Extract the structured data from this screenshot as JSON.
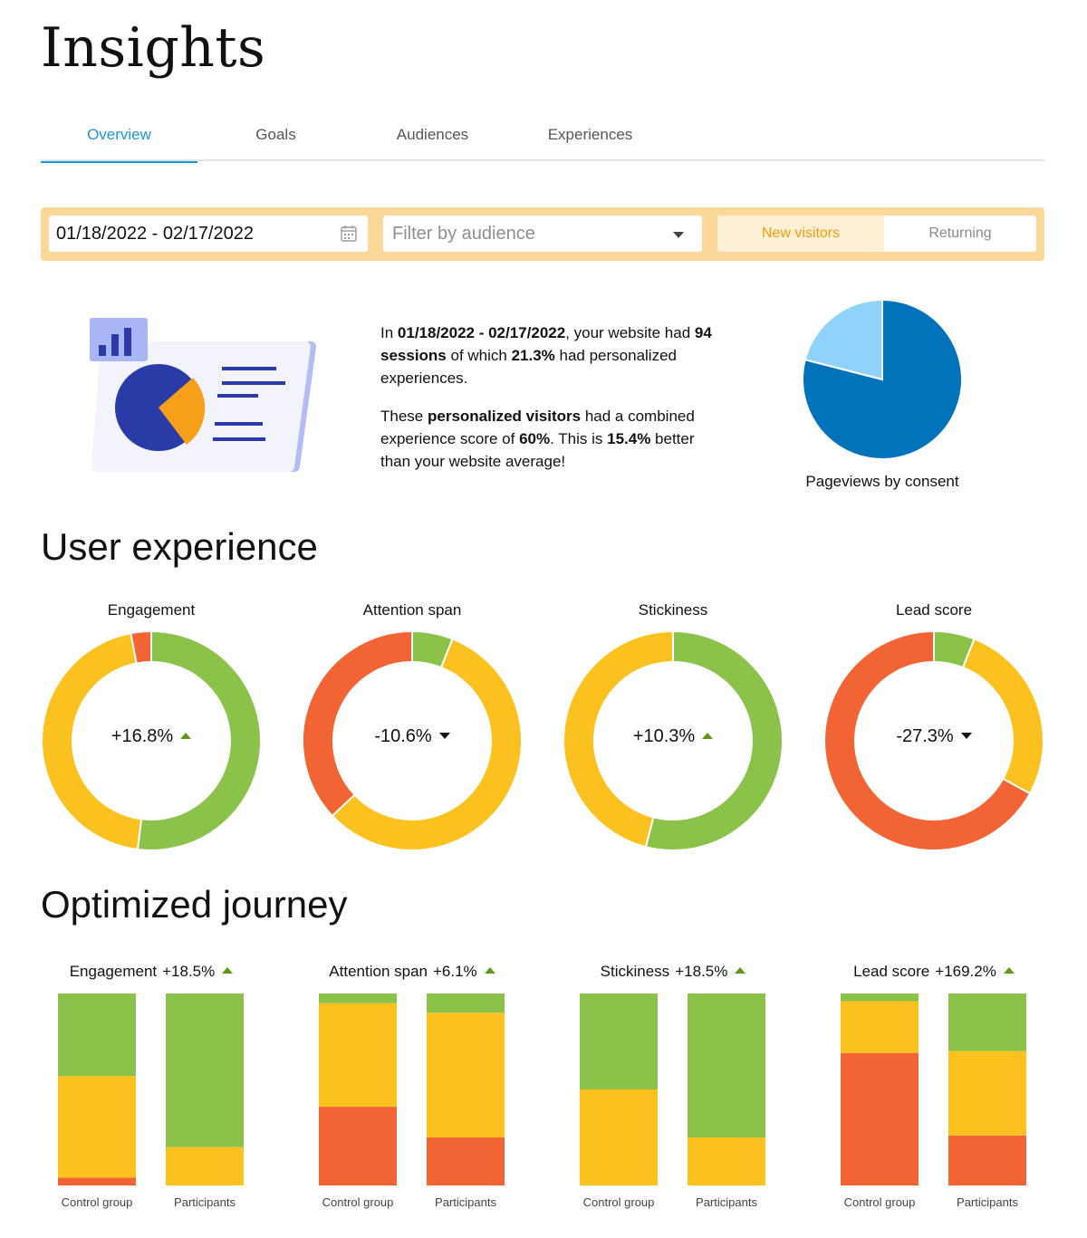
{
  "page": {
    "title": "Insights"
  },
  "tabs": [
    {
      "label": "Overview",
      "active": true
    },
    {
      "label": "Goals",
      "active": false
    },
    {
      "label": "Audiences",
      "active": false
    },
    {
      "label": "Experiences",
      "active": false
    }
  ],
  "filters": {
    "date_range": "01/18/2022 - 02/17/2022",
    "audience_placeholder": "Filter by audience",
    "toggle": [
      {
        "label": "New visitors",
        "active": true
      },
      {
        "label": "Returning",
        "active": false
      }
    ]
  },
  "colors": {
    "green": "#8bc34a",
    "yellow": "#fbc21f",
    "red": "#f26433",
    "pie_dark": "#0073bb",
    "pie_light": "#8fd3fb",
    "accent": "#1d97d9"
  },
  "summary": {
    "p1_prefix": "In ",
    "p1_date": "01/18/2022 - 02/17/2022",
    "p1_mid1": ", your website had ",
    "p1_sessions": "94 sessions",
    "p1_mid2": " of which ",
    "p1_pct": "21.3%",
    "p1_suffix": " had personalized experiences.",
    "p2_prefix": "These ",
    "p2_bold1": "personalized visitors",
    "p2_mid1": " had a combined experience score of ",
    "p2_score": "60%",
    "p2_mid2": ". This is ",
    "p2_better": "15.4%",
    "p2_suffix": " better than your website average!"
  },
  "consent_chart": {
    "caption": "Pageviews by consent",
    "slices": [
      {
        "value": 79,
        "color": "#0073bb"
      },
      {
        "value": 21,
        "color": "#8fd3fb"
      }
    ]
  },
  "sections": {
    "user_experience": "User experience",
    "optimized_journey": "Optimized journey"
  },
  "chart_data": [
    {
      "type": "pie",
      "title": "Engagement",
      "center_label": "+16.8%",
      "trend": "up",
      "slices": [
        {
          "value": 52,
          "color": "#8bc34a"
        },
        {
          "value": 45,
          "color": "#fbc21f"
        },
        {
          "value": 3,
          "color": "#f26433"
        }
      ]
    },
    {
      "type": "pie",
      "title": "Attention span",
      "center_label": "-10.6%",
      "trend": "down",
      "slices": [
        {
          "value": 6,
          "color": "#8bc34a"
        },
        {
          "value": 57,
          "color": "#fbc21f"
        },
        {
          "value": 37,
          "color": "#f26433"
        }
      ]
    },
    {
      "type": "pie",
      "title": "Stickiness",
      "center_label": "+10.3%",
      "trend": "up",
      "slices": [
        {
          "value": 54,
          "color": "#8bc34a"
        },
        {
          "value": 46,
          "color": "#fbc21f"
        }
      ]
    },
    {
      "type": "pie",
      "title": "Lead score",
      "center_label": "-27.3%",
      "trend": "down",
      "slices": [
        {
          "value": 6,
          "color": "#8bc34a"
        },
        {
          "value": 27,
          "color": "#fbc21f"
        },
        {
          "value": 67,
          "color": "#f26433"
        }
      ]
    },
    {
      "type": "bar",
      "stacked": true,
      "title": "Engagement",
      "delta": "+18.5%",
      "categories": [
        "Control group",
        "Participants"
      ],
      "series": [
        {
          "color": "#f26433",
          "values": [
            4,
            0
          ]
        },
        {
          "color": "#fbc21f",
          "values": [
            53,
            20
          ]
        },
        {
          "color": "#8bc34a",
          "values": [
            43,
            80
          ]
        }
      ]
    },
    {
      "type": "bar",
      "stacked": true,
      "title": "Attention span",
      "delta": "+6.1%",
      "categories": [
        "Control group",
        "Participants"
      ],
      "series": [
        {
          "color": "#f26433",
          "values": [
            41,
            25
          ]
        },
        {
          "color": "#fbc21f",
          "values": [
            54,
            65
          ]
        },
        {
          "color": "#8bc34a",
          "values": [
            5,
            10
          ]
        }
      ]
    },
    {
      "type": "bar",
      "stacked": true,
      "title": "Stickiness",
      "delta": "+18.5%",
      "categories": [
        "Control group",
        "Participants"
      ],
      "series": [
        {
          "color": "#f26433",
          "values": [
            0,
            0
          ]
        },
        {
          "color": "#fbc21f",
          "values": [
            50,
            25
          ]
        },
        {
          "color": "#8bc34a",
          "values": [
            50,
            75
          ]
        }
      ]
    },
    {
      "type": "bar",
      "stacked": true,
      "title": "Lead score",
      "delta": "+169.2%",
      "categories": [
        "Control group",
        "Participants"
      ],
      "series": [
        {
          "color": "#f26433",
          "values": [
            69,
            26
          ]
        },
        {
          "color": "#fbc21f",
          "values": [
            27,
            44
          ]
        },
        {
          "color": "#8bc34a",
          "values": [
            4,
            30
          ]
        }
      ]
    }
  ]
}
